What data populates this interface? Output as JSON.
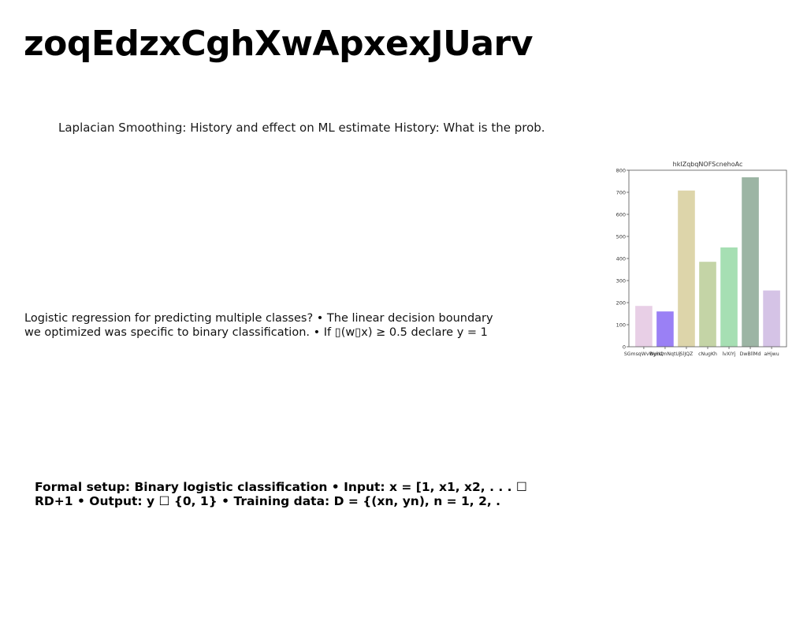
{
  "slide": {
    "title": "zoqEdzxCghXwApxexJUarv",
    "paragraph1": "Laplacian Smoothing: History and effect on ML estimate History: What is the prob.",
    "paragraph2": "Logistic regression for predicting multiple classes? • The linear decision boundary we optimized was specific to binary classification. • If ▯(w▯x) ≥ 0.5 declare y = 1",
    "paragraph3": "Formal setup: Binary logistic classification • Input: x = [1, x1, x2, . . . ☐ RD+1 • Output: y ☐ {0, 1} • Training data: D = {(xn, yn), n = 1, 2, ."
  },
  "chart_data": {
    "type": "bar",
    "title": "hkIZqbqNOFScnehoAc",
    "categories": [
      "SGmsqWvWyhQ",
      "ByxUmNqtUj",
      "SlJQZ",
      "cNugKh",
      "lvXIYj",
      "DwBllMd",
      "aHjwu"
    ],
    "values": [
      185,
      160,
      708,
      385,
      450,
      768,
      255
    ],
    "colors": [
      "#e8cfe6",
      "#9a80f5",
      "#ddd5aa",
      "#c4d4a6",
      "#a6dfb3",
      "#9cb5a4",
      "#d5c3e6"
    ],
    "ylim": [
      0,
      800
    ],
    "yticks": [
      0,
      100,
      200,
      300,
      400,
      500,
      600,
      700,
      800
    ],
    "xlabel": "",
    "ylabel": "",
    "grid": false
  }
}
